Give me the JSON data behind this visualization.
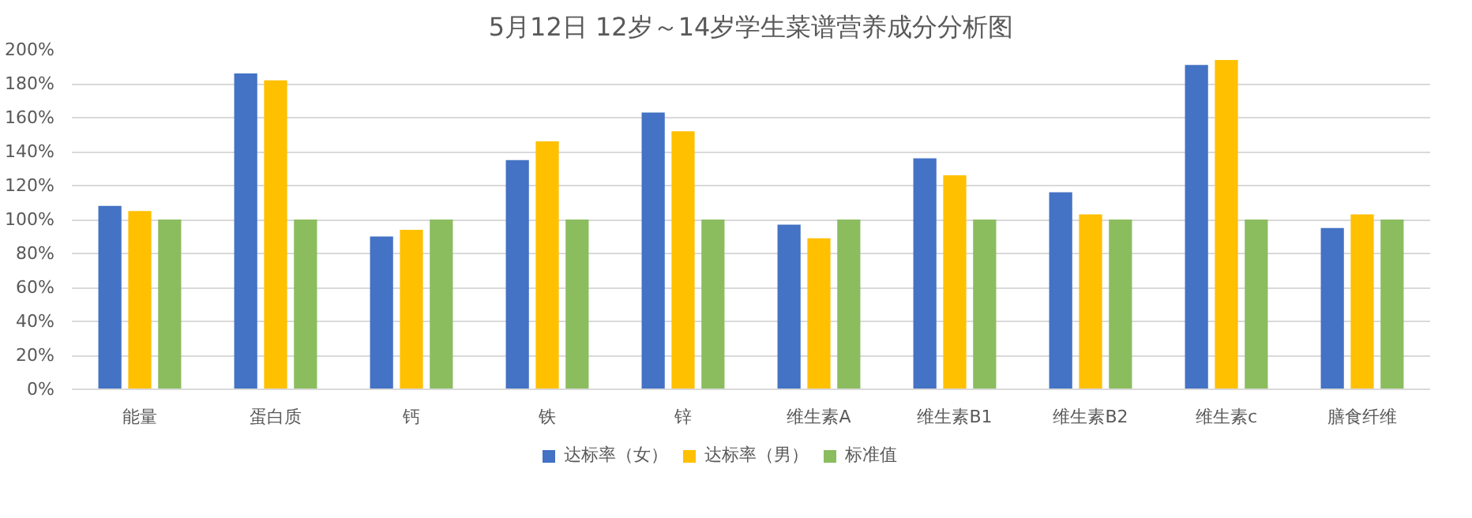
{
  "chart_data": {
    "type": "bar",
    "title": "5月12日 12岁～14岁学生菜谱营养成分分析图",
    "categories": [
      "能量",
      "蛋白质",
      "钙",
      "铁",
      "锌",
      "维生素A",
      "维生素B1",
      "维生素B2",
      "维生素c",
      "膳食纤维"
    ],
    "series": [
      {
        "name": "达标率（女）",
        "color": "#4472c4",
        "values": [
          108,
          186,
          90,
          135,
          163,
          97,
          136,
          116,
          191,
          95
        ]
      },
      {
        "name": "达标率（男）",
        "color": "#ffc000",
        "values": [
          105,
          182,
          94,
          146,
          152,
          89,
          126,
          103,
          194,
          103
        ]
      },
      {
        "name": "标准值",
        "color": "#8bbd5f",
        "values": [
          100,
          100,
          100,
          100,
          100,
          100,
          100,
          100,
          100,
          100
        ]
      }
    ],
    "ylim": [
      0,
      200
    ],
    "yticks": [
      {
        "value": 0,
        "label": "0%"
      },
      {
        "value": 20,
        "label": "20%"
      },
      {
        "value": 40,
        "label": "40%"
      },
      {
        "value": 60,
        "label": "60%"
      },
      {
        "value": 80,
        "label": "80%"
      },
      {
        "value": 100,
        "label": "100%"
      },
      {
        "value": 120,
        "label": "120%"
      },
      {
        "value": 140,
        "label": "140%"
      },
      {
        "value": 160,
        "label": "160%"
      },
      {
        "value": 180,
        "label": "180%"
      },
      {
        "value": 200,
        "label": "200%"
      }
    ],
    "grid": "y",
    "legend": "bottom"
  }
}
